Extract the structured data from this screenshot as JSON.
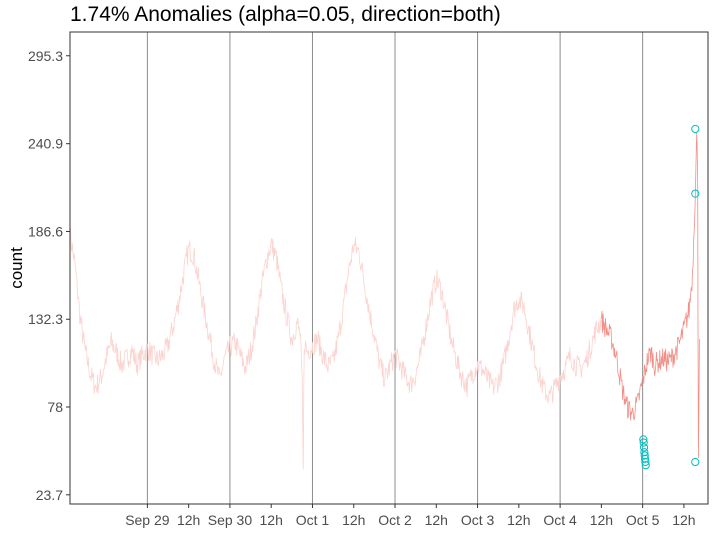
{
  "chart_data": {
    "type": "line",
    "title": "1.74% Anomalies (alpha=0.05, direction=both)",
    "xlabel": "",
    "ylabel": "count",
    "ylim": [
      18,
      310
    ],
    "yticks": [
      23.7,
      78,
      132.3,
      186.6,
      240.9,
      295.3
    ],
    "ytick_labels": [
      "23.7",
      "78",
      "132.3",
      "186.6",
      "240.9",
      "295.3"
    ],
    "xlim_hours": [
      -22.5,
      163
    ],
    "xticks": [
      {
        "label": "Sep 29",
        "hour": 0
      },
      {
        "label": "12h",
        "hour": 12
      },
      {
        "label": "Sep 30",
        "hour": 24
      },
      {
        "label": "12h",
        "hour": 36
      },
      {
        "label": "Oct  1",
        "hour": 48
      },
      {
        "label": "12h",
        "hour": 60
      },
      {
        "label": "Oct  2",
        "hour": 72
      },
      {
        "label": "12h",
        "hour": 84
      },
      {
        "label": "Oct  3",
        "hour": 96
      },
      {
        "label": "12h",
        "hour": 108
      },
      {
        "label": "Oct  4",
        "hour": 120
      },
      {
        "label": "12h",
        "hour": 132
      },
      {
        "label": "Oct  5",
        "hour": 144
      },
      {
        "label": "12h",
        "hour": 156
      }
    ],
    "day_lines_hours": [
      0,
      24,
      48,
      72,
      96,
      120,
      144
    ],
    "grid": "vertical day lines",
    "legend": "none",
    "series": [
      {
        "role": "history",
        "color": "#fbd3cf",
        "points": [
          [
            -22.5,
            185
          ],
          [
            -21,
            165
          ],
          [
            -19.5,
            132
          ],
          [
            -18,
            112
          ],
          [
            -16.5,
            98
          ],
          [
            -15,
            90
          ],
          [
            -13.5,
            96
          ],
          [
            -12,
            108
          ],
          [
            -10.5,
            118
          ],
          [
            -9,
            112
          ],
          [
            -7.5,
            104
          ],
          [
            -6,
            108
          ],
          [
            -4.5,
            113
          ],
          [
            -3,
            104
          ],
          [
            -1.5,
            110
          ],
          [
            0,
            114
          ],
          [
            1.5,
            110
          ],
          [
            3,
            107
          ],
          [
            4.5,
            110
          ],
          [
            6,
            116
          ],
          [
            7.5,
            128
          ],
          [
            9,
            142
          ],
          [
            10.5,
            160
          ],
          [
            12,
            176
          ],
          [
            13.5,
            172
          ],
          [
            15,
            155
          ],
          [
            16.5,
            138
          ],
          [
            18,
            122
          ],
          [
            19.5,
            106
          ],
          [
            21,
            95
          ],
          [
            22.5,
            108
          ],
          [
            24,
            115
          ],
          [
            25.5,
            118
          ],
          [
            27,
            110
          ],
          [
            28.5,
            102
          ],
          [
            30,
            112
          ],
          [
            31.5,
            128
          ],
          [
            33,
            150
          ],
          [
            34.5,
            168
          ],
          [
            36,
            179
          ],
          [
            37.5,
            170
          ],
          [
            39,
            150
          ],
          [
            40.5,
            134
          ],
          [
            42,
            120
          ],
          [
            43.5,
            130
          ],
          [
            44.5,
            122
          ],
          [
            45,
            90
          ],
          [
            45.3,
            38
          ],
          [
            45.6,
            118
          ],
          [
            46.5,
            112
          ],
          [
            48,
            116
          ],
          [
            49.5,
            120
          ],
          [
            51,
            110
          ],
          [
            52.5,
            103
          ],
          [
            54,
            106
          ],
          [
            55.5,
            120
          ],
          [
            57,
            140
          ],
          [
            58.5,
            162
          ],
          [
            60,
            178
          ],
          [
            61.5,
            174
          ],
          [
            63,
            156
          ],
          [
            64.5,
            138
          ],
          [
            66,
            122
          ],
          [
            67.5,
            105
          ],
          [
            69,
            95
          ],
          [
            70.5,
            103
          ],
          [
            72,
            110
          ],
          [
            73.5,
            104
          ],
          [
            75,
            97
          ],
          [
            76.5,
            92
          ],
          [
            78,
            98
          ],
          [
            79.5,
            110
          ],
          [
            81,
            128
          ],
          [
            82.5,
            145
          ],
          [
            84,
            157
          ],
          [
            85.5,
            150
          ],
          [
            87,
            134
          ],
          [
            88.5,
            118
          ],
          [
            90,
            106
          ],
          [
            91.5,
            96
          ],
          [
            93,
            91
          ],
          [
            94.5,
            99
          ],
          [
            96,
            104
          ],
          [
            97.5,
            101
          ],
          [
            99,
            95
          ],
          [
            100.5,
            90
          ],
          [
            102,
            94
          ],
          [
            103.5,
            104
          ],
          [
            105,
            120
          ],
          [
            106.5,
            138
          ],
          [
            108,
            145
          ],
          [
            109.5,
            140
          ],
          [
            111,
            125
          ],
          [
            112.5,
            110
          ],
          [
            114,
            97
          ],
          [
            115.5,
            88
          ],
          [
            117,
            84
          ],
          [
            118.5,
            90
          ],
          [
            120,
            97
          ],
          [
            121.5,
            102
          ],
          [
            123,
            110
          ],
          [
            124.5,
            104
          ],
          [
            126,
            102
          ],
          [
            127.5,
            106
          ],
          [
            129,
            116
          ],
          [
            130.5,
            126
          ],
          [
            132,
            132
          ]
        ]
      },
      {
        "role": "recent",
        "color": "#f28e86",
        "points": [
          [
            132,
            132
          ],
          [
            133.5,
            126
          ],
          [
            135,
            120
          ],
          [
            136.5,
            108
          ],
          [
            138,
            90
          ],
          [
            139.5,
            78
          ],
          [
            141,
            74
          ],
          [
            142.5,
            80
          ],
          [
            144,
            94
          ],
          [
            145.5,
            108
          ],
          [
            146.5,
            112
          ],
          [
            147.5,
            104
          ],
          [
            148.5,
            106
          ],
          [
            150,
            108
          ],
          [
            151.5,
            106
          ],
          [
            153,
            110
          ],
          [
            154.5,
            116
          ],
          [
            156,
            126
          ],
          [
            157.5,
            138
          ],
          [
            158.5,
            160
          ],
          [
            159.2,
            205
          ],
          [
            159.7,
            245
          ],
          [
            160,
            220
          ],
          [
            160.2,
            48
          ],
          [
            160.5,
            120
          ]
        ]
      }
    ],
    "anomalies": {
      "color": "#00bfc4",
      "points": [
        [
          144.2,
          58
        ],
        [
          144.3,
          56
        ],
        [
          144.4,
          53
        ],
        [
          144.5,
          50
        ],
        [
          144.6,
          48
        ],
        [
          144.7,
          46
        ],
        [
          144.8,
          44
        ],
        [
          144.9,
          42
        ],
        [
          159.3,
          210
        ],
        [
          159.3,
          250
        ],
        [
          159.3,
          44
        ]
      ]
    }
  }
}
